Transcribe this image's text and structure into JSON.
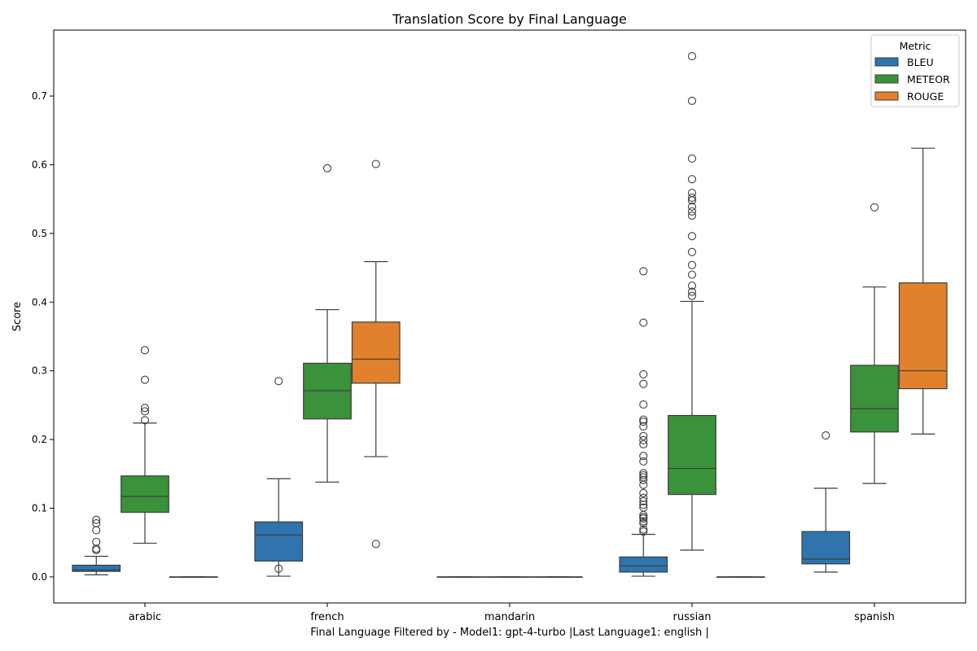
{
  "chart_data": {
    "type": "box",
    "title": "Translation Score by Final Language",
    "xlabel": "Final Language Filtered by - Model1: gpt-4-turbo |Last Language1: english |",
    "ylabel": "Score",
    "categories": [
      "arabic",
      "french",
      "mandarin",
      "russian",
      "spanish"
    ],
    "ylim": [
      -0.038,
      0.796
    ],
    "yticks": [
      "0.0",
      "0.1",
      "0.2",
      "0.3",
      "0.4",
      "0.5",
      "0.6",
      "0.7"
    ],
    "grid": false,
    "legend": {
      "title": "Metric",
      "placement": "top-right"
    },
    "series": [
      {
        "name": "BLEU",
        "color": "#2f74ad",
        "boxes": [
          {
            "category": "arabic",
            "whislo": 0.003,
            "q1": 0.008,
            "med": 0.01,
            "q3": 0.017,
            "whishi": 0.03,
            "fliers": [
              0.083,
              0.078,
              0.068,
              0.051,
              0.041,
              0.039
            ]
          },
          {
            "category": "french",
            "whislo": 0.001,
            "q1": 0.023,
            "med": 0.061,
            "q3": 0.08,
            "whishi": 0.143,
            "fliers": [
              0.285,
              0.012
            ]
          },
          {
            "category": "mandarin",
            "whislo": 0.0,
            "q1": 0.0,
            "med": 0.0,
            "q3": 0.0,
            "whishi": 0.0,
            "fliers": []
          },
          {
            "category": "russian",
            "whislo": 0.001,
            "q1": 0.007,
            "med": 0.016,
            "q3": 0.029,
            "whishi": 0.062,
            "fliers": [
              0.445,
              0.37,
              0.295,
              0.281,
              0.251,
              0.229,
              0.226,
              0.219,
              0.205,
              0.199,
              0.193,
              0.176,
              0.168,
              0.151,
              0.148,
              0.145,
              0.141,
              0.134,
              0.122,
              0.115,
              0.11,
              0.105,
              0.101,
              0.09,
              0.087,
              0.085,
              0.081,
              0.078,
              0.069,
              0.066
            ]
          },
          {
            "category": "spanish",
            "whislo": 0.007,
            "q1": 0.019,
            "med": 0.026,
            "q3": 0.066,
            "whishi": 0.129,
            "fliers": [
              0.206
            ]
          }
        ]
      },
      {
        "name": "METEOR",
        "color": "#3a923a",
        "boxes": [
          {
            "category": "arabic",
            "whislo": 0.049,
            "q1": 0.094,
            "med": 0.117,
            "q3": 0.147,
            "whishi": 0.224,
            "fliers": [
              0.33,
              0.287,
              0.246,
              0.241,
              0.228
            ]
          },
          {
            "category": "french",
            "whislo": 0.138,
            "q1": 0.23,
            "med": 0.271,
            "q3": 0.311,
            "whishi": 0.389,
            "fliers": [
              0.595
            ]
          },
          {
            "category": "mandarin",
            "whislo": 0.0,
            "q1": 0.0,
            "med": 0.0,
            "q3": 0.0,
            "whishi": 0.0,
            "fliers": []
          },
          {
            "category": "russian",
            "whislo": 0.039,
            "q1": 0.12,
            "med": 0.158,
            "q3": 0.235,
            "whishi": 0.401,
            "fliers": [
              0.758,
              0.693,
              0.609,
              0.579,
              0.559,
              0.552,
              0.548,
              0.539,
              0.532,
              0.526,
              0.496,
              0.473,
              0.454,
              0.44,
              0.424,
              0.415,
              0.409
            ]
          },
          {
            "category": "spanish",
            "whislo": 0.136,
            "q1": 0.211,
            "med": 0.245,
            "q3": 0.308,
            "whishi": 0.422,
            "fliers": [
              0.538
            ]
          }
        ]
      },
      {
        "name": "ROUGE",
        "color": "#e1812c",
        "boxes": [
          {
            "category": "arabic",
            "whislo": 0.0,
            "q1": 0.0,
            "med": 0.0,
            "q3": 0.0,
            "whishi": 0.0,
            "fliers": []
          },
          {
            "category": "french",
            "whislo": 0.175,
            "q1": 0.282,
            "med": 0.317,
            "q3": 0.371,
            "whishi": 0.459,
            "fliers": [
              0.601,
              0.048
            ]
          },
          {
            "category": "mandarin",
            "whislo": 0.0,
            "q1": 0.0,
            "med": 0.0,
            "q3": 0.0,
            "whishi": 0.0,
            "fliers": []
          },
          {
            "category": "russian",
            "whislo": 0.0,
            "q1": 0.0,
            "med": 0.0,
            "q3": 0.0,
            "whishi": 0.0,
            "fliers": []
          },
          {
            "category": "spanish",
            "whislo": 0.208,
            "q1": 0.274,
            "med": 0.3,
            "q3": 0.428,
            "whishi": 0.624,
            "fliers": []
          }
        ]
      }
    ]
  }
}
